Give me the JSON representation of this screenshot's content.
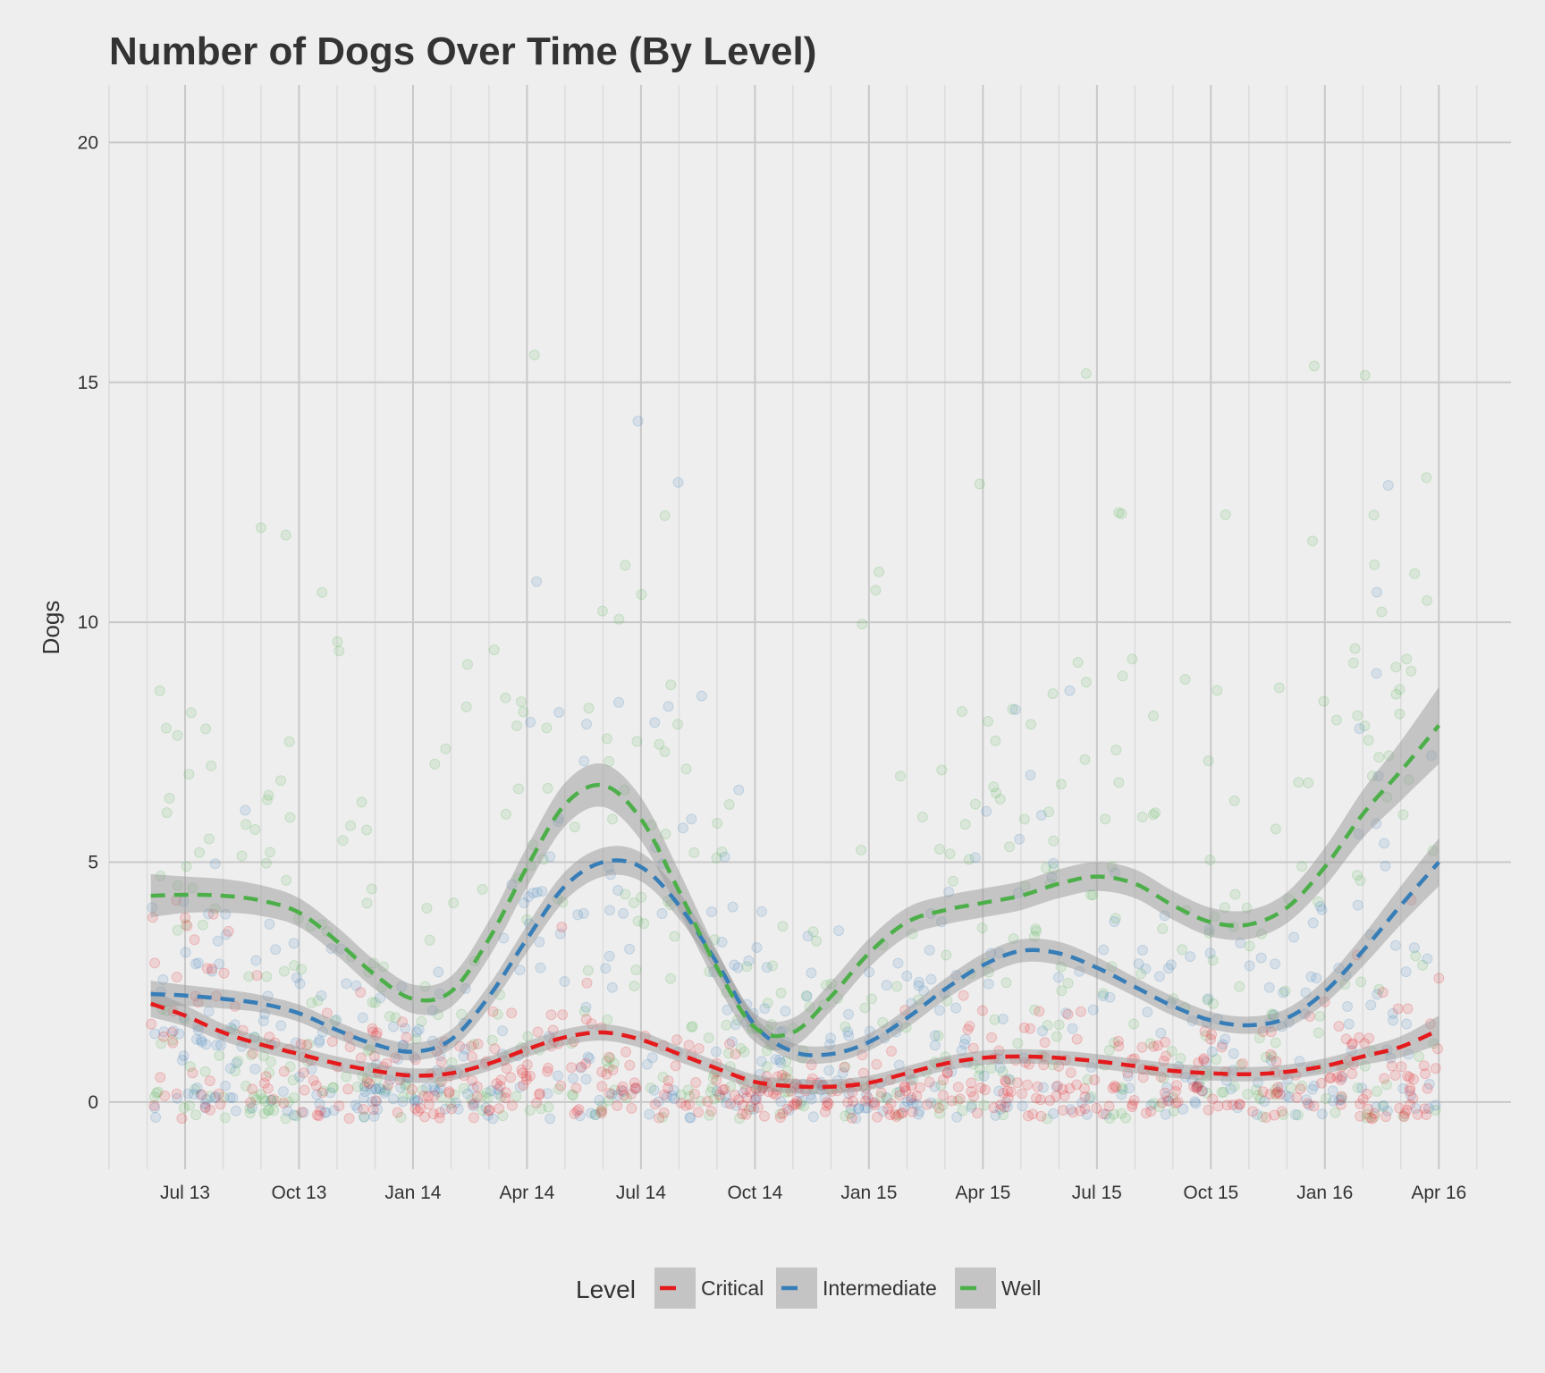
{
  "chart_data": {
    "type": "scatter",
    "title": "Number of Dogs Over Time (By Level)",
    "xlabel": "",
    "ylabel": "Dogs",
    "x_tick_labels": [
      "Jul 13",
      "Oct 13",
      "Jan 14",
      "Apr 14",
      "Jul 14",
      "Oct 14",
      "Jan 15",
      "Apr 15",
      "Jul 15",
      "Oct 15",
      "Jan 16",
      "Apr 16"
    ],
    "x_tick_month_index": [
      0,
      3,
      6,
      9,
      12,
      15,
      18,
      21,
      24,
      27,
      30,
      33
    ],
    "x_range_months": [
      -2.0,
      34.9
    ],
    "y_ticks": [
      0,
      5,
      10,
      15,
      20
    ],
    "ylim": [
      -1.4,
      21.2
    ],
    "grid": true,
    "legend": {
      "title": "Level",
      "position": "bottom"
    },
    "series": [
      {
        "name": "Critical",
        "color": "#e41a1c",
        "x": [
          -0.9,
          0,
          1,
          2,
          3,
          4,
          5,
          6,
          7,
          8,
          9,
          10,
          11,
          12,
          13,
          14,
          15,
          16,
          17,
          18,
          19,
          20,
          21,
          22,
          23,
          24,
          25,
          26,
          27,
          28,
          29,
          30,
          31,
          32,
          33
        ],
        "y": [
          2.05,
          1.8,
          1.45,
          1.2,
          1.0,
          0.8,
          0.65,
          0.55,
          0.6,
          0.8,
          1.1,
          1.35,
          1.45,
          1.3,
          1.0,
          0.7,
          0.42,
          0.33,
          0.32,
          0.4,
          0.6,
          0.8,
          0.92,
          0.95,
          0.92,
          0.85,
          0.75,
          0.65,
          0.6,
          0.58,
          0.63,
          0.75,
          0.95,
          1.15,
          1.5
        ],
        "ci": [
          0.28,
          0.22,
          0.18,
          0.16,
          0.15,
          0.15,
          0.15,
          0.15,
          0.15,
          0.15,
          0.16,
          0.17,
          0.17,
          0.17,
          0.16,
          0.15,
          0.15,
          0.15,
          0.15,
          0.15,
          0.15,
          0.15,
          0.15,
          0.15,
          0.15,
          0.15,
          0.15,
          0.15,
          0.15,
          0.15,
          0.15,
          0.16,
          0.18,
          0.22,
          0.3
        ],
        "points": {
          "count": 520,
          "mean_min": 0.9,
          "spread": 1.3
        }
      },
      {
        "name": "Intermediate",
        "color": "#377eb8",
        "x": [
          -0.9,
          0,
          1,
          2,
          3,
          4,
          5,
          6,
          7,
          8,
          9,
          10,
          11,
          12,
          13,
          14,
          15,
          16,
          17,
          18,
          19,
          20,
          21,
          22,
          23,
          24,
          25,
          26,
          27,
          28,
          29,
          30,
          31,
          32,
          33
        ],
        "y": [
          2.25,
          2.22,
          2.15,
          2.05,
          1.85,
          1.5,
          1.2,
          1.05,
          1.3,
          2.2,
          3.4,
          4.5,
          5.0,
          4.9,
          4.1,
          2.9,
          1.6,
          1.05,
          1.0,
          1.25,
          1.75,
          2.35,
          2.85,
          3.15,
          3.1,
          2.8,
          2.4,
          2.0,
          1.7,
          1.6,
          1.75,
          2.3,
          3.15,
          4.1,
          5.0
        ],
        "ci": [
          0.28,
          0.22,
          0.2,
          0.18,
          0.18,
          0.18,
          0.18,
          0.18,
          0.2,
          0.24,
          0.28,
          0.3,
          0.3,
          0.3,
          0.28,
          0.22,
          0.18,
          0.18,
          0.18,
          0.18,
          0.2,
          0.22,
          0.24,
          0.24,
          0.24,
          0.22,
          0.2,
          0.2,
          0.18,
          0.18,
          0.2,
          0.25,
          0.32,
          0.4,
          0.5
        ],
        "points": {
          "count": 520,
          "mean_min": 1.4,
          "spread": 2.2
        }
      },
      {
        "name": "Well",
        "color": "#4daf4a",
        "x": [
          -0.9,
          0,
          1,
          2,
          3,
          4,
          5,
          6,
          7,
          8,
          9,
          10,
          11,
          12,
          13,
          14,
          15,
          16,
          17,
          18,
          19,
          20,
          21,
          22,
          23,
          24,
          25,
          26,
          27,
          28,
          29,
          30,
          31,
          32,
          33
        ],
        "y": [
          4.3,
          4.32,
          4.3,
          4.2,
          3.95,
          3.35,
          2.65,
          2.15,
          2.3,
          3.4,
          4.9,
          6.2,
          6.6,
          5.9,
          4.4,
          2.8,
          1.55,
          1.45,
          2.2,
          3.1,
          3.75,
          4.0,
          4.15,
          4.3,
          4.55,
          4.7,
          4.55,
          4.1,
          3.75,
          3.7,
          4.05,
          4.9,
          6.0,
          6.9,
          7.85
        ],
        "ci": [
          0.45,
          0.38,
          0.35,
          0.32,
          0.3,
          0.3,
          0.3,
          0.3,
          0.32,
          0.38,
          0.42,
          0.45,
          0.45,
          0.45,
          0.42,
          0.35,
          0.3,
          0.3,
          0.3,
          0.3,
          0.3,
          0.3,
          0.3,
          0.3,
          0.3,
          0.3,
          0.3,
          0.3,
          0.3,
          0.3,
          0.32,
          0.4,
          0.5,
          0.62,
          0.8
        ],
        "points": {
          "count": 560,
          "mean_min": 2.8,
          "spread": 3.4
        }
      }
    ]
  }
}
